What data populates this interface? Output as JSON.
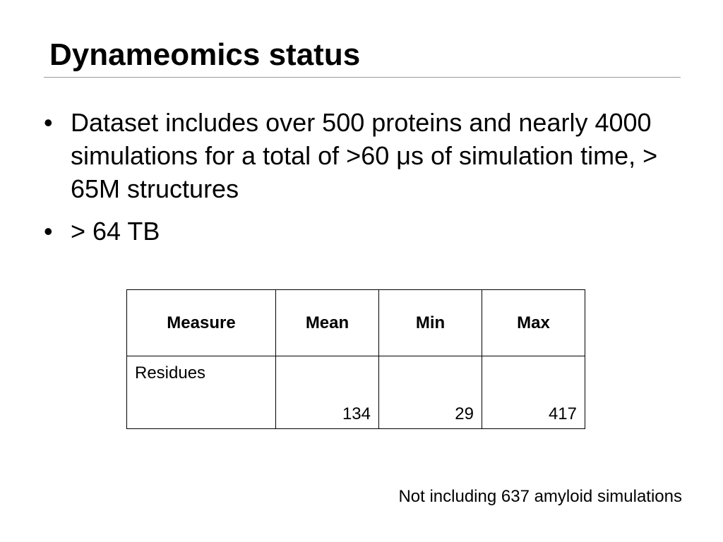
{
  "slide": {
    "title": "Dynameomics status",
    "bullets": [
      "Dataset includes over 500 proteins and nearly 4000 simulations for a total of >60 μs of simulation time, > 65M structures",
      "> 64 TB"
    ],
    "bullet_char": "•"
  },
  "table": {
    "headers": [
      "Measure",
      "Mean",
      "Min",
      "Max"
    ],
    "rows": [
      {
        "measure": "Residues",
        "mean": "134",
        "min": "29",
        "max": "417"
      }
    ]
  },
  "footnote": "Not including 637 amyloid simulations"
}
